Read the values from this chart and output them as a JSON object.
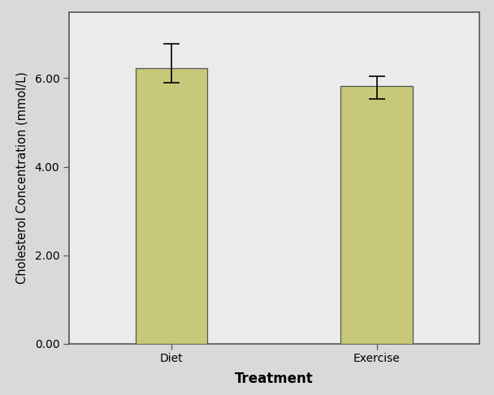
{
  "categories": [
    "Diet",
    "Exercise"
  ],
  "values": [
    6.22,
    5.82
  ],
  "errors_upper": [
    0.55,
    0.22
  ],
  "errors_lower": [
    0.32,
    0.28
  ],
  "bar_color": "#c8c87a",
  "bar_edgecolor": "#555555",
  "background_color": "#d9d9d9",
  "plot_bg_color": "#ebebeb",
  "xlabel": "Treatment",
  "ylabel": "Cholesterol Concentration (mmol/L)",
  "ylim": [
    0,
    7.5
  ],
  "ytick_vals": [
    0.0,
    2.0,
    4.0,
    6.0
  ],
  "ytick_labels": [
    "0.00",
    "2.00",
    "4.00",
    "6.00"
  ],
  "xlabel_fontsize": 12,
  "ylabel_fontsize": 10.5,
  "tick_fontsize": 10,
  "bar_width": 0.7,
  "bar_positions": [
    1,
    3
  ],
  "xlim": [
    0,
    4
  ],
  "capsize": 7,
  "errorbar_linewidth": 1.2,
  "errorbar_capthick": 1.2,
  "spine_color": "#555555",
  "spine_linewidth": 1.2
}
